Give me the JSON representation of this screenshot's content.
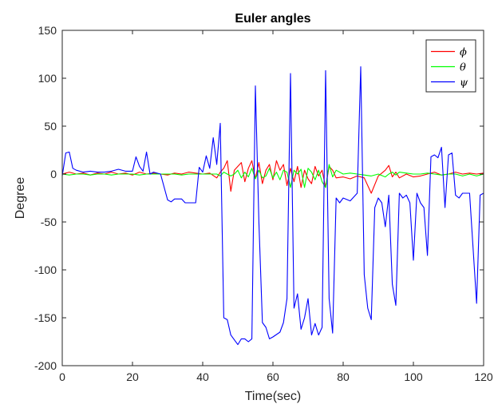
{
  "chart_data": {
    "type": "line",
    "title": "Euler angles",
    "xlabel": "Time(sec)",
    "ylabel": "Degree",
    "xlim": [
      0,
      120
    ],
    "ylim": [
      -200,
      150
    ],
    "xticks": [
      0,
      20,
      40,
      60,
      80,
      100,
      120
    ],
    "yticks": [
      -200,
      -150,
      -100,
      -50,
      0,
      50,
      100,
      150
    ],
    "grid": false,
    "legend_position": "top-right",
    "series": [
      {
        "name": "ϕ",
        "color": "#ff0000",
        "x": [
          0,
          2,
          4,
          6,
          8,
          10,
          12,
          14,
          16,
          18,
          20,
          22,
          24,
          26,
          28,
          30,
          32,
          34,
          36,
          38,
          40,
          42,
          44,
          45,
          46,
          47,
          48,
          49,
          50,
          51,
          52,
          53,
          54,
          55,
          56,
          57,
          58,
          59,
          60,
          61,
          62,
          63,
          64,
          65,
          66,
          67,
          68,
          69,
          70,
          71,
          72,
          73,
          74,
          75,
          76,
          77,
          78,
          80,
          82,
          84,
          86,
          88,
          90,
          92,
          93,
          94,
          95,
          96,
          98,
          100,
          102,
          104,
          106,
          108,
          110,
          112,
          114,
          116,
          118,
          120
        ],
        "values": [
          0,
          2,
          0,
          1,
          -1,
          1,
          0,
          2,
          0,
          1,
          -1,
          2,
          0,
          1,
          0,
          -1,
          1,
          0,
          2,
          1,
          0,
          1,
          -4,
          2,
          6,
          14,
          -18,
          4,
          8,
          12,
          -8,
          6,
          14,
          -5,
          12,
          -10,
          4,
          10,
          -6,
          14,
          4,
          10,
          -12,
          6,
          -8,
          8,
          -14,
          4,
          -5,
          -10,
          8,
          -2,
          4,
          -14,
          8,
          4,
          -4,
          -3,
          -5,
          -2,
          -4,
          -20,
          -2,
          4,
          9,
          -3,
          2,
          -4,
          0,
          -3,
          -2,
          0,
          2,
          -1,
          0,
          2,
          0,
          1,
          0,
          1
        ]
      },
      {
        "name": "θ",
        "color": "#00ff00",
        "x": [
          0,
          2,
          4,
          6,
          8,
          10,
          12,
          14,
          16,
          18,
          20,
          22,
          24,
          26,
          28,
          30,
          32,
          34,
          36,
          38,
          40,
          42,
          44,
          45,
          46,
          47,
          48,
          49,
          50,
          51,
          52,
          53,
          54,
          55,
          56,
          57,
          58,
          59,
          60,
          61,
          62,
          63,
          64,
          65,
          66,
          67,
          68,
          69,
          70,
          71,
          72,
          73,
          74,
          75,
          76,
          77,
          78,
          80,
          82,
          84,
          86,
          88,
          90,
          92,
          93,
          94,
          95,
          96,
          98,
          100,
          102,
          104,
          106,
          108,
          110,
          112,
          114,
          116,
          118,
          120
        ],
        "values": [
          0,
          -1,
          0,
          0,
          -1,
          0,
          0,
          -1,
          0,
          0,
          0,
          -1,
          0,
          0,
          0,
          0,
          0,
          -1,
          0,
          0,
          0,
          0,
          0,
          -2,
          2,
          0,
          -2,
          0,
          4,
          -4,
          2,
          -3,
          6,
          -5,
          4,
          -4,
          -2,
          6,
          -4,
          2,
          -6,
          4,
          2,
          -14,
          4,
          0,
          5,
          -14,
          6,
          2,
          -6,
          4,
          -8,
          -14,
          10,
          -3,
          4,
          0,
          1,
          0,
          -1,
          -2,
          0,
          -3,
          0,
          2,
          -1,
          2,
          1,
          0,
          0,
          1,
          0,
          -1,
          0,
          0,
          -2,
          0,
          -2,
          0
        ]
      },
      {
        "name": "ψ",
        "color": "#0000ff",
        "x": [
          0,
          1,
          2,
          3,
          4,
          6,
          8,
          10,
          12,
          14,
          16,
          18,
          20,
          21,
          22,
          23,
          24,
          25,
          26,
          28,
          30,
          31,
          32,
          34,
          35,
          36,
          38,
          39,
          40,
          41,
          42,
          43,
          44,
          45,
          46,
          47,
          48,
          49,
          50,
          51,
          52,
          53,
          54,
          55,
          56,
          57,
          58,
          59,
          60,
          62,
          63,
          64,
          65,
          66,
          67,
          68,
          69,
          70,
          71,
          72,
          73,
          74,
          75,
          76,
          77,
          78,
          79,
          80,
          82,
          84,
          85,
          86,
          87,
          88,
          89,
          90,
          91,
          92,
          93,
          94,
          95,
          96,
          97,
          98,
          99,
          100,
          101,
          102,
          103,
          104,
          105,
          106,
          107,
          108,
          109,
          110,
          111,
          112,
          113,
          114,
          116,
          118,
          119,
          120
        ],
        "values": [
          -2,
          22,
          23,
          6,
          4,
          2,
          3,
          2,
          2,
          3,
          5,
          3,
          3,
          18,
          8,
          3,
          23,
          0,
          2,
          0,
          -27,
          -29,
          -26,
          -26,
          -30,
          -30,
          -30,
          7,
          2,
          19,
          6,
          38,
          10,
          53,
          -150,
          -152,
          -168,
          -173,
          -178,
          -172,
          -172,
          -175,
          -172,
          92,
          -50,
          -155,
          -160,
          -172,
          -170,
          -165,
          -155,
          -130,
          105,
          -140,
          -125,
          -162,
          -150,
          -130,
          -168,
          -156,
          -168,
          -160,
          108,
          -130,
          -166,
          -25,
          -30,
          -25,
          -28,
          -20,
          112,
          -105,
          -140,
          -152,
          -35,
          -25,
          -30,
          -55,
          -22,
          -115,
          -137,
          -20,
          -25,
          -22,
          -30,
          -90,
          -20,
          -30,
          -35,
          -85,
          18,
          20,
          17,
          28,
          -35,
          20,
          22,
          -22,
          -25,
          -20,
          -20,
          -135,
          -22,
          -20
        ]
      }
    ]
  }
}
